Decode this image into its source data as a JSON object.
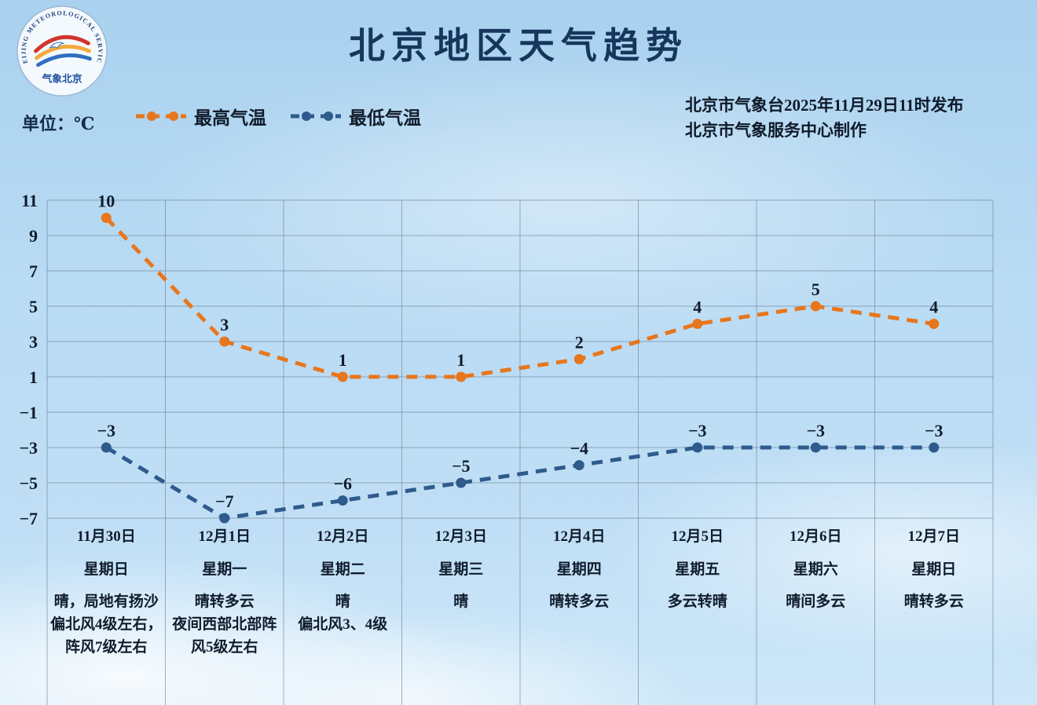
{
  "title": "北京地区天气趋势",
  "unit_label": "单位：℃",
  "legend": {
    "high": "最高气温",
    "low": "最低气温"
  },
  "publish": {
    "line1": "北京市气象台2025年11月29日11时发布",
    "line2": "北京市气象服务中心制作"
  },
  "logo": {
    "ring_text": "BEIJING METEOROLOGICAL SERVICE",
    "cn_text": "气象北京"
  },
  "colors": {
    "high": "#E8761C",
    "low": "#2E5B8C",
    "grid": "rgba(96,114,138,0.55)",
    "text": "#101c2c",
    "title": "#16365C"
  },
  "chart_data": {
    "type": "line",
    "title": "北京地区天气趋势",
    "ylabel": "℃",
    "ylim": [
      -7,
      11
    ],
    "yticks": [
      11,
      9,
      7,
      5,
      3,
      1,
      -1,
      -3,
      -5,
      -7
    ],
    "grid": true,
    "legend_position": "top",
    "categories": [
      {
        "date": "11月30日",
        "weekday": "星期日",
        "desc": "晴，局地有扬沙\n偏北风4级左右，阵风7级左右"
      },
      {
        "date": "12月1日",
        "weekday": "星期一",
        "desc": "晴转多云\n夜间西部北部阵风5级左右"
      },
      {
        "date": "12月2日",
        "weekday": "星期二",
        "desc": "晴\n偏北风3、4级"
      },
      {
        "date": "12月3日",
        "weekday": "星期三",
        "desc": "晴"
      },
      {
        "date": "12月4日",
        "weekday": "星期四",
        "desc": "晴转多云"
      },
      {
        "date": "12月5日",
        "weekday": "星期五",
        "desc": "多云转晴"
      },
      {
        "date": "12月6日",
        "weekday": "星期六",
        "desc": "晴间多云"
      },
      {
        "date": "12月7日",
        "weekday": "星期日",
        "desc": "晴转多云"
      }
    ],
    "series": [
      {
        "name": "最高气温",
        "color": "#E8761C",
        "values": [
          10,
          3,
          1,
          1,
          2,
          4,
          5,
          4
        ]
      },
      {
        "name": "最低气温",
        "color": "#2E5B8C",
        "values": [
          -3,
          -7,
          -6,
          -5,
          -4,
          -3,
          -3,
          -3
        ]
      }
    ]
  }
}
